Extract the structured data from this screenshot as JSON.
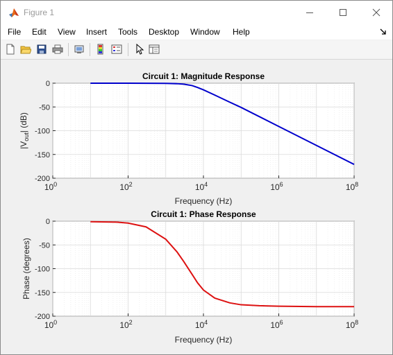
{
  "window": {
    "title": "Figure 1",
    "icon": "matlab-icon",
    "controls": [
      "minimize-icon",
      "maximize-icon",
      "close-icon"
    ]
  },
  "menu": {
    "items": [
      "File",
      "Edit",
      "View",
      "Insert",
      "Tools",
      "Desktop",
      "Window",
      "Help"
    ],
    "dock_icon": "dock-arrow-icon"
  },
  "toolbar": {
    "icons": [
      "new-figure-icon",
      "open-file-icon",
      "save-icon",
      "print-icon",
      "link-icon",
      "colorbar-icon",
      "legend-icon",
      "pointer-icon",
      "property-editor-icon"
    ]
  },
  "chart_data": [
    {
      "type": "line",
      "title": "Circuit 1: Magnitude Response",
      "xlabel": "Frequency (Hz)",
      "ylabel_main": "|V",
      "ylabel_sub": "out",
      "ylabel_end": "| (dB)",
      "xscale": "log",
      "xlim": [
        1,
        100000000
      ],
      "ylim": [
        -200,
        0
      ],
      "yticks": [
        0,
        -50,
        -100,
        -150,
        -200
      ],
      "xtick_base": "10",
      "xtick_exponents": [
        "0",
        "2",
        "4",
        "6",
        "8"
      ],
      "grid": true,
      "series": [
        {
          "color": "#0000cc",
          "x": [
            10,
            100,
            1000,
            2000,
            3000,
            5000,
            7000,
            10000,
            20000,
            50000,
            100000,
            1000000,
            10000000,
            100000000
          ],
          "y": [
            0,
            0,
            -0.3,
            -1,
            -2,
            -5,
            -9,
            -14,
            -25,
            -40,
            -51,
            -91,
            -131,
            -171
          ]
        }
      ]
    },
    {
      "type": "line",
      "title": "Circuit 1: Phase Response",
      "xlabel": "Frequency (Hz)",
      "ylabel": "Phase (degrees)",
      "xscale": "log",
      "xlim": [
        1,
        100000000
      ],
      "ylim": [
        -200,
        0
      ],
      "yticks": [
        0,
        -50,
        -100,
        -150,
        -200
      ],
      "xtick_base": "10",
      "xtick_exponents": [
        "0",
        "2",
        "4",
        "6",
        "8"
      ],
      "grid": true,
      "series": [
        {
          "color": "#dd1111",
          "x": [
            10,
            50,
            100,
            300,
            1000,
            2000,
            3000,
            5000,
            7000,
            10000,
            20000,
            50000,
            100000,
            300000,
            1000000,
            10000000,
            100000000
          ],
          "y": [
            -1,
            -2,
            -4,
            -12,
            -38,
            -65,
            -85,
            -112,
            -130,
            -145,
            -162,
            -172,
            -176,
            -178,
            -179,
            -180,
            -180
          ]
        }
      ]
    }
  ]
}
